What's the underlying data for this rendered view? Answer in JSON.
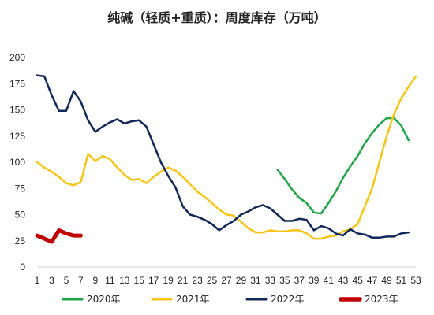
{
  "chart_data": {
    "type": "line",
    "title": "纯碱（轻质+重质）：周度库存（万吨）",
    "xlabel": "",
    "ylabel": "",
    "xlim": [
      1,
      53
    ],
    "ylim": [
      0,
      200
    ],
    "y_ticks": [
      0,
      25,
      50,
      75,
      100,
      125,
      150,
      175,
      200
    ],
    "x_ticks": [
      1,
      3,
      5,
      7,
      9,
      11,
      13,
      15,
      17,
      19,
      21,
      23,
      25,
      27,
      29,
      31,
      33,
      35,
      37,
      39,
      41,
      43,
      45,
      47,
      49,
      51,
      53
    ],
    "grid": false,
    "legend_position": "bottom",
    "series": [
      {
        "name": "2020年",
        "color": "#1ea647",
        "width": 2.5,
        "x": [
          34,
          35,
          36,
          37,
          38,
          39,
          40,
          41,
          42,
          43,
          44,
          45,
          46,
          47,
          48,
          49,
          50,
          51,
          52
        ],
        "y": [
          93,
          84,
          74,
          66,
          61,
          52,
          51,
          61,
          72,
          85,
          96,
          106,
          118,
          128,
          136,
          142,
          142,
          135,
          121
        ]
      },
      {
        "name": "2021年",
        "color": "#f5c518",
        "width": 2.5,
        "x": [
          1,
          2,
          3,
          4,
          5,
          6,
          7,
          8,
          9,
          10,
          11,
          12,
          13,
          14,
          15,
          16,
          17,
          18,
          19,
          20,
          21,
          22,
          23,
          24,
          25,
          26,
          27,
          28,
          29,
          30,
          31,
          32,
          33,
          34,
          35,
          36,
          37,
          38,
          39,
          40,
          41,
          42,
          43,
          44,
          45,
          46,
          47,
          48,
          49,
          50,
          51,
          52,
          53
        ],
        "y": [
          100,
          95,
          91,
          86,
          80,
          78,
          81,
          108,
          101,
          106,
          103,
          95,
          88,
          83,
          84,
          80,
          86,
          91,
          95,
          92,
          86,
          79,
          72,
          67,
          61,
          55,
          50,
          49,
          43,
          37,
          33,
          33,
          35,
          34,
          34,
          35,
          35,
          32,
          27,
          27,
          29,
          30,
          34,
          36,
          41,
          58,
          75,
          100,
          125,
          146,
          161,
          172,
          182
        ]
      },
      {
        "name": "2022年",
        "color": "#12285a",
        "width": 2.5,
        "x": [
          1,
          2,
          3,
          4,
          5,
          6,
          7,
          8,
          9,
          10,
          11,
          12,
          13,
          14,
          15,
          16,
          17,
          18,
          19,
          20,
          21,
          22,
          23,
          24,
          25,
          26,
          27,
          28,
          29,
          30,
          31,
          32,
          33,
          34,
          35,
          36,
          37,
          38,
          39,
          40,
          41,
          42,
          43,
          44,
          45,
          46,
          47,
          48,
          49,
          50,
          51,
          52
        ],
        "y": [
          183,
          182,
          164,
          149,
          149,
          168,
          158,
          140,
          129,
          134,
          138,
          141,
          137,
          139,
          140,
          134,
          117,
          100,
          87,
          76,
          58,
          50,
          48,
          45,
          41,
          35,
          40,
          44,
          50,
          53,
          57,
          59,
          56,
          50,
          44,
          44,
          46,
          45,
          35,
          39,
          37,
          32,
          30,
          36,
          32,
          31,
          28,
          28,
          29,
          29,
          32,
          33
        ]
      },
      {
        "name": "2023年",
        "color": "#c00000",
        "width": 5,
        "x": [
          1,
          2,
          3,
          4,
          5,
          6,
          7
        ],
        "y": [
          30,
          27,
          24,
          35,
          32,
          30,
          30
        ]
      }
    ]
  }
}
